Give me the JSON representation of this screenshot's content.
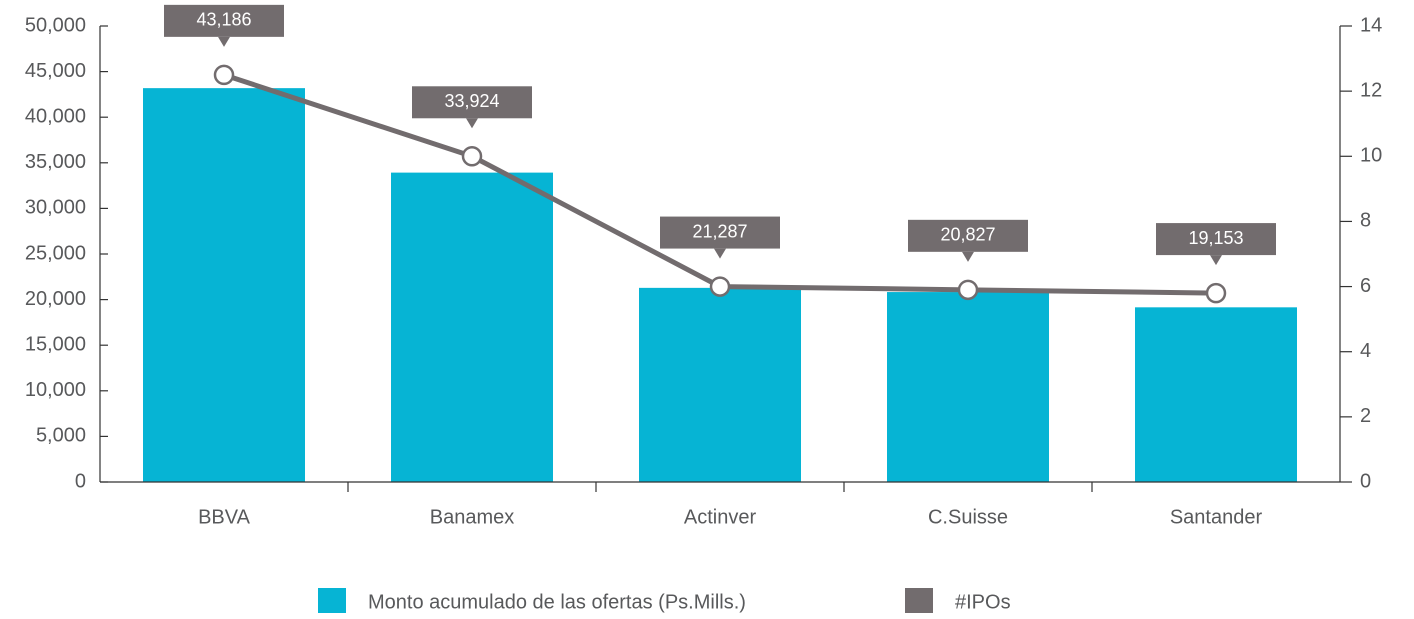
{
  "chart_data": {
    "type": "bar_line",
    "categories": [
      "BBVA",
      "Banamex",
      "Actinver",
      "C.Suisse",
      "Santander"
    ],
    "series": [
      {
        "name": "Monto acumulado de las ofertas (Ps.Mills.)",
        "color": "#06b4d4",
        "type": "bar",
        "values": [
          43186,
          33924,
          21287,
          20827,
          19153
        ],
        "value_labels": [
          "43,186",
          "33,924",
          "21,287",
          "20,827",
          "19,153"
        ]
      },
      {
        "name": "#IPOs",
        "color": "#726c6e",
        "type": "line",
        "axis": "y2",
        "values": [
          12.5,
          10,
          6,
          5.9,
          5.8
        ]
      }
    ],
    "ylim": [
      0,
      50000
    ],
    "yticks": [
      0,
      {
        "value": 5000,
        "label": "5,000"
      },
      {
        "value": 10000,
        "label": "10,000"
      },
      {
        "value": 15000,
        "label": "15,000"
      },
      {
        "value": 20000,
        "label": "20,000"
      },
      {
        "value": 25000,
        "label": "25,000"
      },
      {
        "value": 30000,
        "label": "30,000"
      },
      {
        "value": 35000,
        "label": "35,000"
      },
      {
        "value": 40000,
        "label": "40,000"
      },
      {
        "value": 45000,
        "label": "45,000"
      },
      {
        "value": 50000,
        "label": "50,000"
      }
    ],
    "y2lim": [
      0,
      14
    ],
    "y2ticks": [
      0,
      2,
      4,
      6,
      8,
      10,
      12,
      14
    ],
    "legend": "bottom"
  }
}
